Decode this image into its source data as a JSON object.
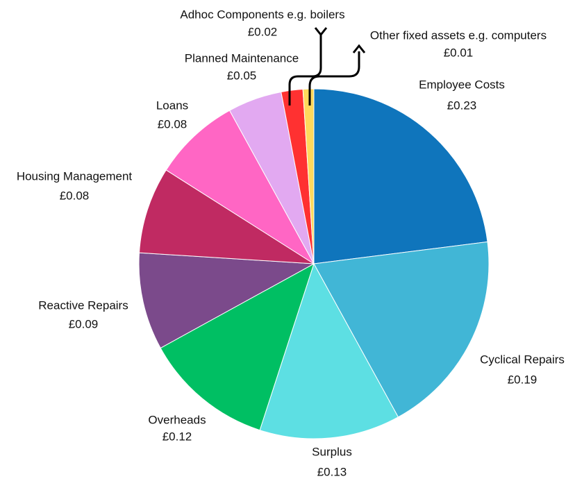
{
  "chart_data": {
    "type": "pie",
    "categories": [
      "Employee Costs",
      "Cyclical Repairs",
      "Surplus",
      "Overheads",
      "Reactive Repairs",
      "Housing Management",
      "Loans",
      "Planned Maintenance",
      "Adhoc Components e.g. boilers",
      "Other fixed assets e.g. computers"
    ],
    "values": [
      0.23,
      0.19,
      0.13,
      0.12,
      0.09,
      0.08,
      0.08,
      0.05,
      0.02,
      0.01
    ],
    "value_labels": [
      "£0.23",
      "£0.19",
      "£0.13",
      "£0.12",
      "£0.09",
      "£0.08",
      "£0.08",
      "£0.05",
      "£0.02",
      "£0.01"
    ],
    "colors": [
      "#0f75bc",
      "#41b6d6",
      "#5ddfe3",
      "#00bf63",
      "#7b4a8b",
      "#c02a62",
      "#ff66c4",
      "#e2a9f1",
      "#ff3131",
      "#ffd95c"
    ]
  }
}
